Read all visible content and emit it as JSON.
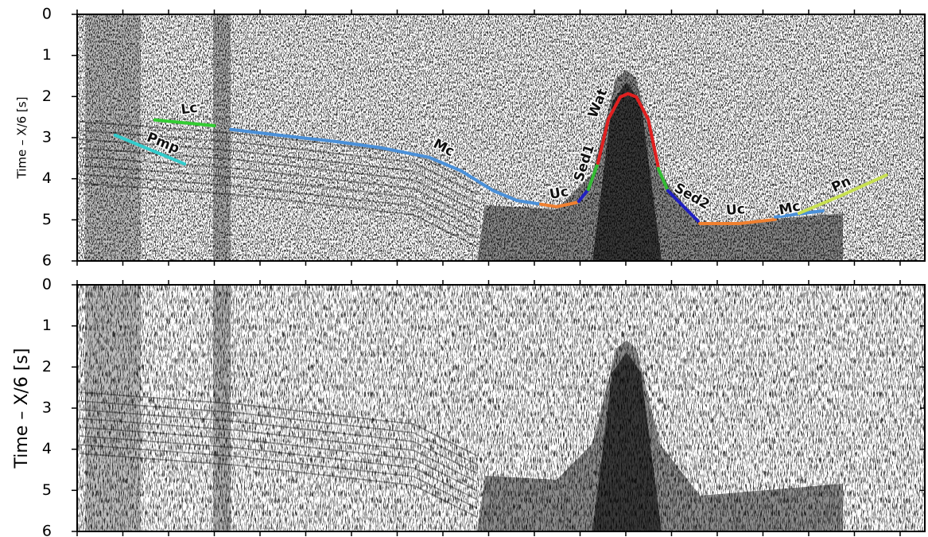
{
  "chart_data": [
    {
      "type": "line",
      "ylabel": "Time – X/6 [s]",
      "ylim": [
        6,
        0
      ],
      "yticks": [
        0,
        1,
        2,
        3,
        4,
        5,
        6
      ],
      "xlim": [
        0,
        18.54
      ],
      "xticks": [
        0,
        1,
        2,
        3,
        4,
        5,
        6,
        7,
        8,
        9,
        10,
        11,
        12,
        13,
        14,
        15,
        16,
        17,
        18
      ],
      "series": [
        {
          "name": "Lc",
          "color": "#33cc33",
          "x": [
            1.7,
            3.0
          ],
          "values": [
            2.57,
            2.71
          ]
        },
        {
          "name": "Pmp",
          "color": "#33cccc",
          "x": [
            0.83,
            2.35
          ],
          "values": [
            2.94,
            3.64
          ]
        },
        {
          "name": "Mc",
          "color": "#4a90d9",
          "x": [
            3.36,
            4.4,
            5.62,
            6.66,
            7.7,
            8.4,
            9.1,
            9.62,
            10.14
          ],
          "values": [
            2.8,
            2.94,
            3.09,
            3.25,
            3.48,
            3.81,
            4.29,
            4.53,
            4.62
          ]
        },
        {
          "name": "Uc",
          "color": "#f08030",
          "x": [
            10.14,
            10.49,
            10.92
          ],
          "values": [
            4.62,
            4.68,
            4.58
          ]
        },
        {
          "color": "#2020c0",
          "x": [
            10.97,
            11.18
          ],
          "values": [
            4.55,
            4.26
          ]
        },
        {
          "name": "Sed1",
          "color": "#33bb33",
          "x": [
            11.18,
            11.39
          ],
          "values": [
            4.26,
            3.62
          ]
        },
        {
          "name": "Wat",
          "color": "#e02020",
          "x": [
            11.39,
            11.62,
            11.88,
            12.05,
            12.23,
            12.49,
            12.71
          ],
          "values": [
            3.62,
            2.55,
            2.01,
            1.93,
            2.01,
            2.55,
            3.71
          ]
        },
        {
          "color": "#33bb33",
          "x": [
            12.71,
            12.92
          ],
          "values": [
            3.75,
            4.29
          ]
        },
        {
          "name": "Sed2",
          "color": "#2020c0",
          "x": [
            12.92,
            13.58
          ],
          "values": [
            4.29,
            5.03
          ]
        },
        {
          "name": "Uc",
          "color": "#f08030",
          "x": [
            13.62,
            14.49,
            15.27
          ],
          "values": [
            5.09,
            5.09,
            4.99
          ]
        },
        {
          "name": "Mc",
          "color": "#4a90d9",
          "x": [
            15.27,
            16.31
          ],
          "values": [
            4.93,
            4.78
          ]
        },
        {
          "name": "Pn",
          "color": "#c8e050",
          "x": [
            15.79,
            16.75,
            17.7
          ],
          "values": [
            4.84,
            4.39,
            3.91
          ]
        }
      ]
    },
    {
      "type": "line",
      "ylabel": "Time – X/6 [s]",
      "ylim": [
        6,
        0
      ],
      "yticks": [
        0,
        1,
        2,
        3,
        4,
        5,
        6
      ],
      "xlim": [
        0,
        18.54
      ],
      "xticks": [
        0,
        1,
        2,
        3,
        4,
        5,
        6,
        7,
        8,
        9,
        10,
        11,
        12,
        13,
        14,
        15,
        16,
        17,
        18
      ],
      "series": []
    }
  ]
}
